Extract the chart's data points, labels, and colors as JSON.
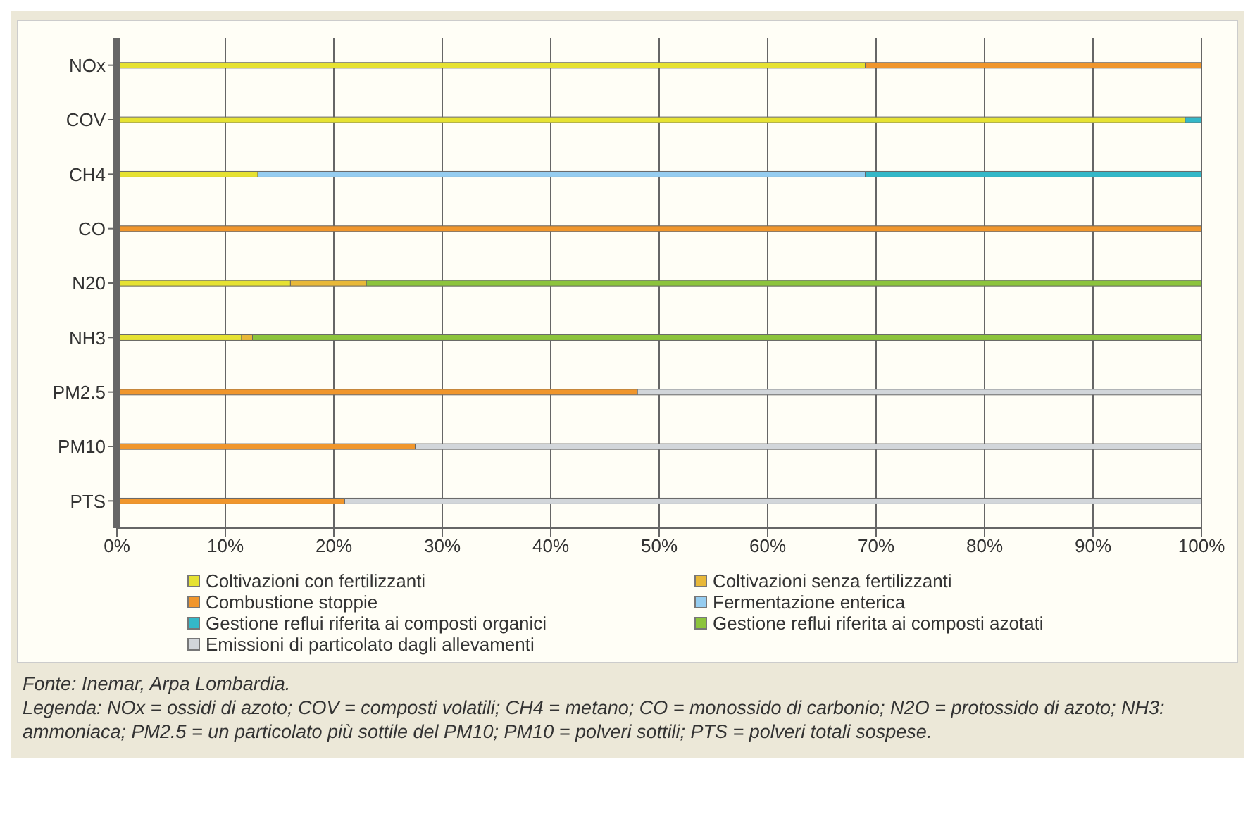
{
  "chart_data": {
    "type": "bar",
    "orientation": "horizontal",
    "stacked": true,
    "categories": [
      "NOx",
      "COV",
      "CH4",
      "CO",
      "N20",
      "NH3",
      "PM2.5",
      "PM10",
      "PTS"
    ],
    "series": [
      {
        "name": "Coltivazioni con fertilizzanti",
        "color": "#e6e232",
        "values": [
          69,
          98.5,
          13,
          0,
          16,
          11.5,
          0,
          0,
          0
        ]
      },
      {
        "name": "Coltivazioni senza fertilizzanti",
        "color": "#e8b838",
        "values": [
          0,
          0,
          0,
          0,
          7,
          1,
          0,
          0,
          0
        ]
      },
      {
        "name": "Combustione stoppie",
        "color": "#f0962c",
        "values": [
          31,
          0,
          0,
          100,
          0,
          0,
          48,
          27.5,
          21
        ]
      },
      {
        "name": "Fermentazione enterica",
        "color": "#96cdf0",
        "values": [
          0,
          0,
          56,
          0,
          0,
          0,
          0,
          0,
          0
        ]
      },
      {
        "name": "Gestione reflui riferita ai composti organici",
        "color": "#34b8c8",
        "values": [
          0,
          1.5,
          31,
          0,
          0,
          0,
          0,
          0,
          0
        ]
      },
      {
        "name": "Gestione reflui riferita ai composti azotati",
        "color": "#8cc43c",
        "values": [
          0,
          0,
          0,
          0,
          77,
          87.5,
          0,
          0,
          0
        ]
      },
      {
        "name": "Emissioni di particolato dagli allevamenti",
        "color": "#d2d6da",
        "values": [
          0,
          0,
          0,
          0,
          0,
          0,
          52,
          72.5,
          79
        ]
      }
    ],
    "xlim": [
      0,
      100
    ],
    "xticks": [
      {
        "value": 0,
        "label": "0%"
      },
      {
        "value": 10,
        "label": "10%"
      },
      {
        "value": 20,
        "label": "20%"
      },
      {
        "value": 30,
        "label": "30%"
      },
      {
        "value": 40,
        "label": "40%"
      },
      {
        "value": 50,
        "label": "50%"
      },
      {
        "value": 60,
        "label": "60%"
      },
      {
        "value": 70,
        "label": "70%"
      },
      {
        "value": 80,
        "label": "80%"
      },
      {
        "value": 90,
        "label": "90%"
      },
      {
        "value": 100,
        "label": "100%"
      }
    ],
    "grid": "x",
    "legend": "bottom",
    "annotations": [
      "Fonte: Inemar, Arpa Lombardia.",
      "Legenda: NOx = ossidi di azoto; COV = composti volatili; CH4 = metano; CO = monossido di carbonio; N2O = protossido di azoto; NH3: ammoniaca; PM2.5 = un particolato più sottile del PM10; PM10 = polveri sottili; PTS = polveri totali sospese."
    ]
  }
}
